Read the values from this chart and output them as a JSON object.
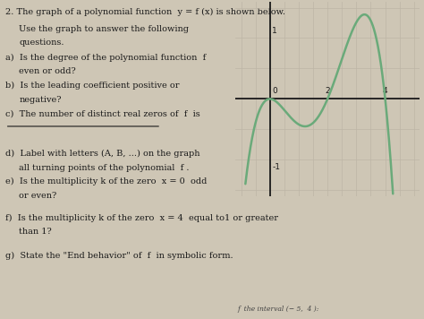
{
  "curve_color": "#6aaa7a",
  "grid_color": "#bdb5a6",
  "axis_color": "#1a1a1a",
  "bg_color": "#cec6b5",
  "paper_color": "#d4cdc0",
  "x_ticks_labels": [
    "0",
    "2",
    "4"
  ],
  "x_ticks_vals": [
    0,
    2,
    4
  ],
  "y_ticks_labels": [
    "1",
    "-1"
  ],
  "y_ticks_vals": [
    1,
    -1
  ],
  "xlim": [
    -1.2,
    5.2
  ],
  "ylim": [
    -1.6,
    1.6
  ],
  "poly_a": -0.18,
  "text_color": "#1a1a1a",
  "underline_y": 0.535,
  "font_size": 7.0
}
